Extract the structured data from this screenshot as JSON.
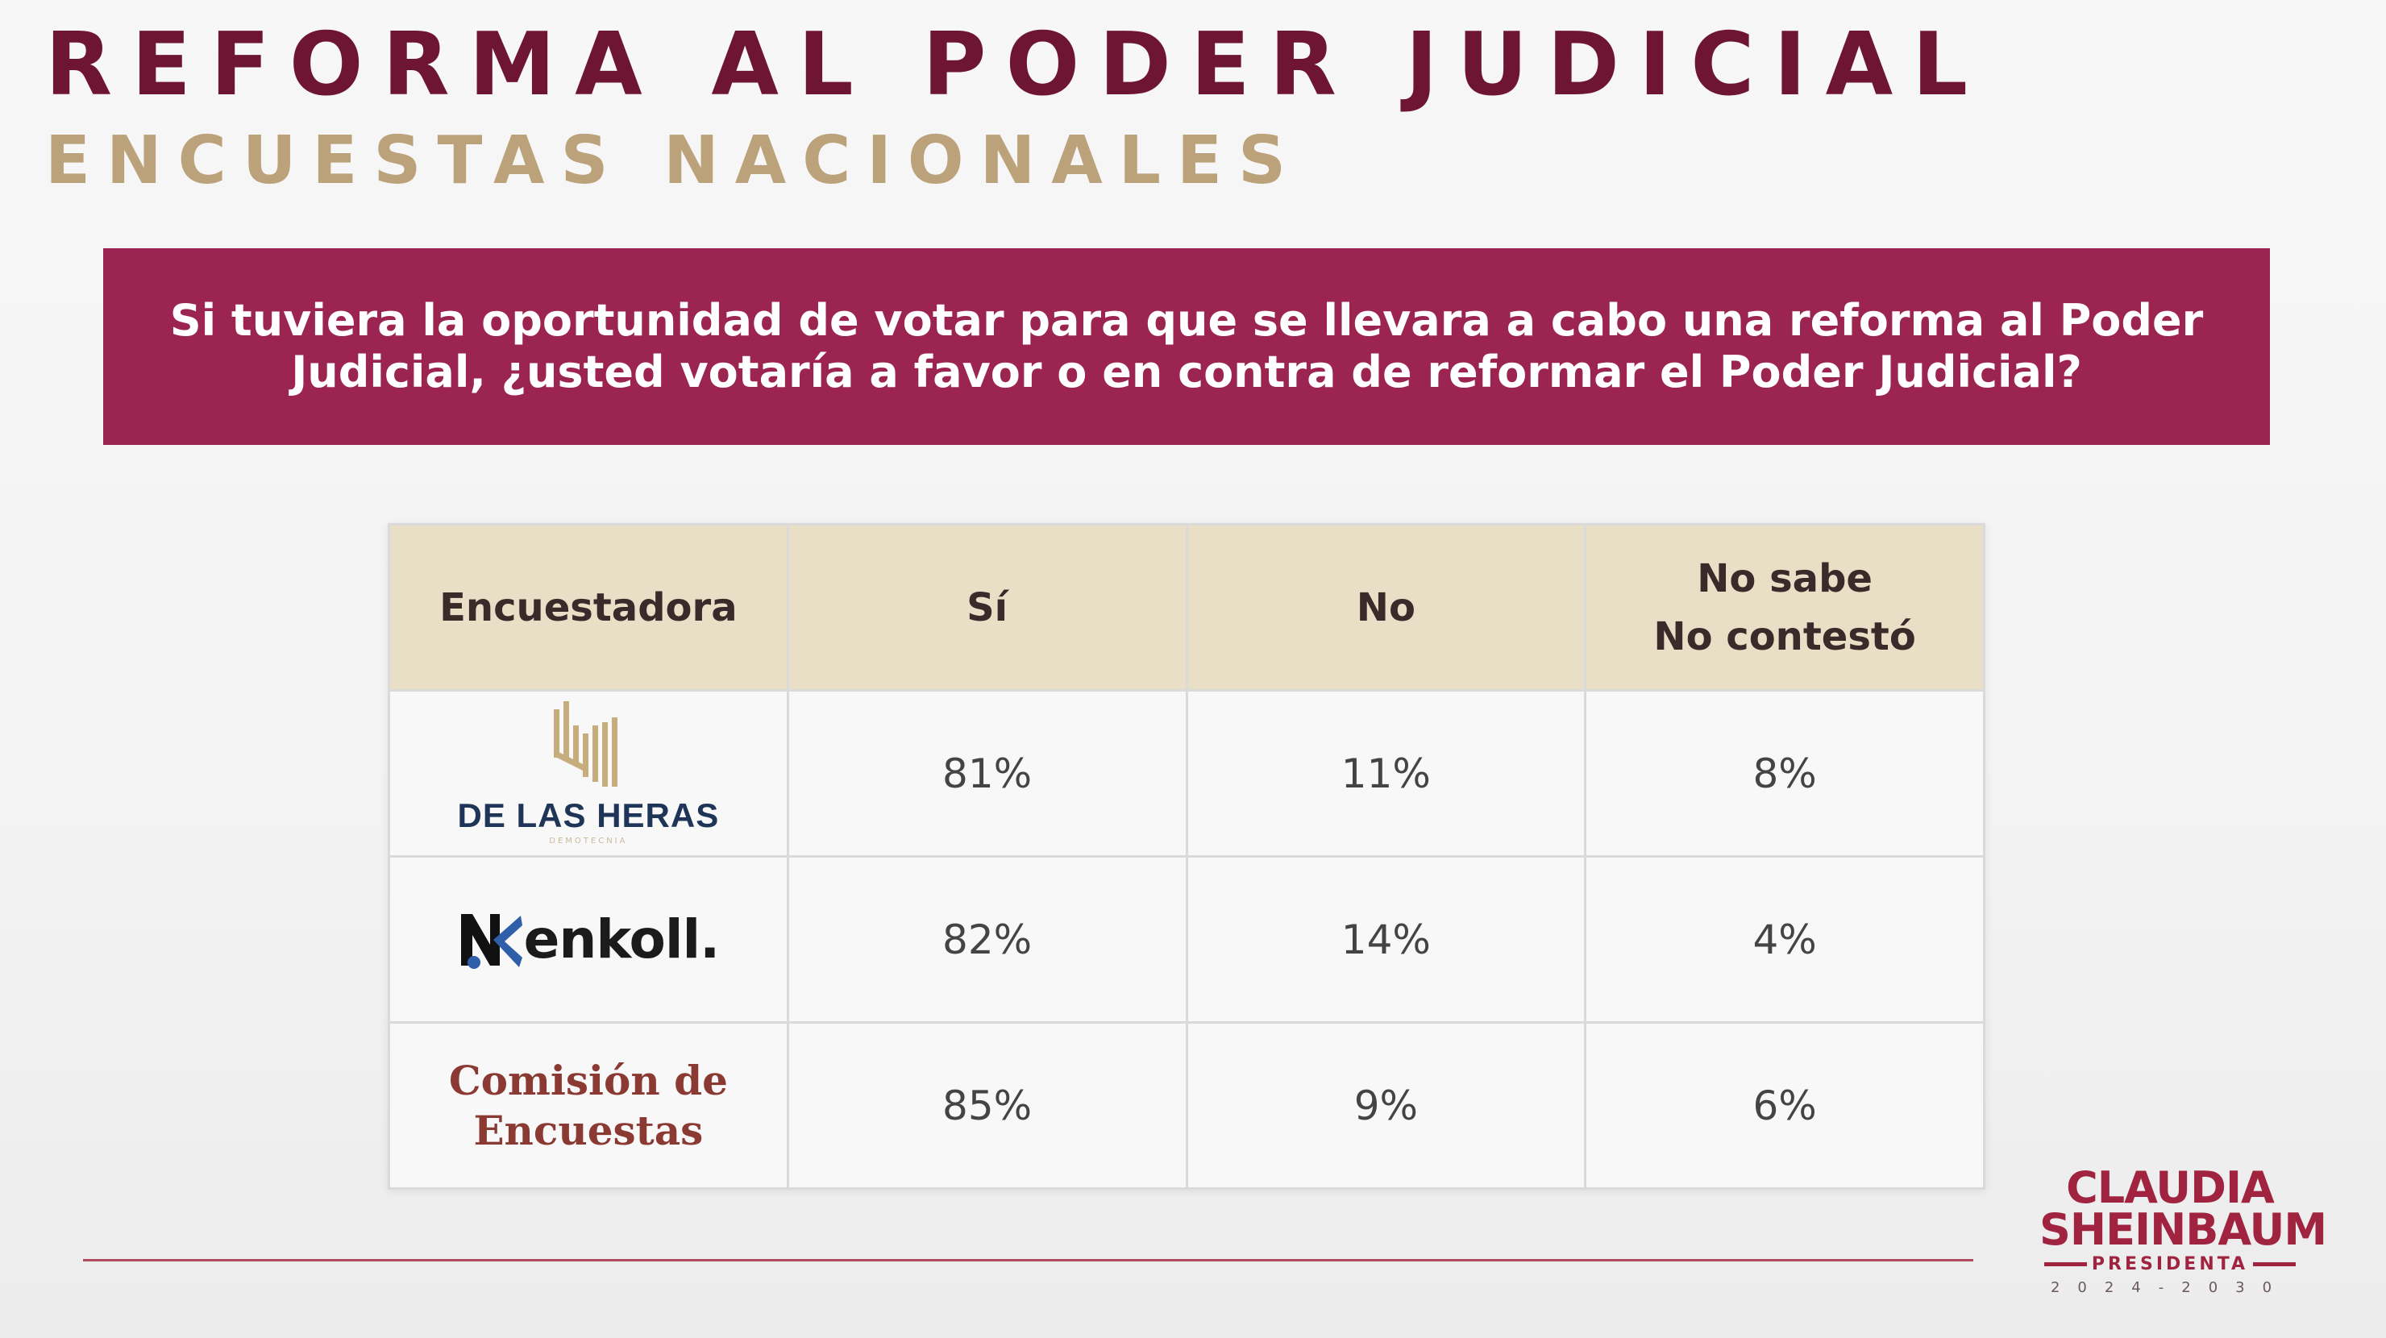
{
  "header": {
    "title": "REFORMA AL PODER JUDICIAL",
    "subtitle": "ENCUESTAS NACIONALES"
  },
  "question": "Si tuviera la oportunidad de votar para que se llevara a cabo una reforma al Poder Judicial, ¿usted votaría a favor o en contra de reformar el Poder Judicial?",
  "chart_data": {
    "type": "table",
    "columns": [
      "Encuestadora",
      "Sí",
      "No",
      "No sabe\nNo contestó"
    ],
    "columns_display": {
      "pollster": "Encuestadora",
      "yes": "Sí",
      "no": "No",
      "dk_line1": "No sabe",
      "dk_line2": "No contestó"
    },
    "rows": [
      {
        "pollster": "DE LAS HERAS",
        "pollster_sub": "DEMOTECNIA",
        "yes": "81%",
        "no": "11%",
        "dk": "8%"
      },
      {
        "pollster": "enkoll.",
        "yes": "82%",
        "no": "14%",
        "dk": "4%"
      },
      {
        "pollster_line1": "Comisión de",
        "pollster_line2": "Encuestas",
        "yes": "85%",
        "no": "9%",
        "dk": "6%"
      }
    ]
  },
  "brand": {
    "line1": "CLAUDIA",
    "line2": "SHEINBAUM",
    "line3": "PRESIDENTA",
    "line4": "2024-2030"
  },
  "colors": {
    "title": "#6e1533",
    "subtitle": "#bca27a",
    "question_bg": "#9b2450",
    "table_header_bg": "#e9dfc7",
    "rule": "#b04a5e"
  }
}
